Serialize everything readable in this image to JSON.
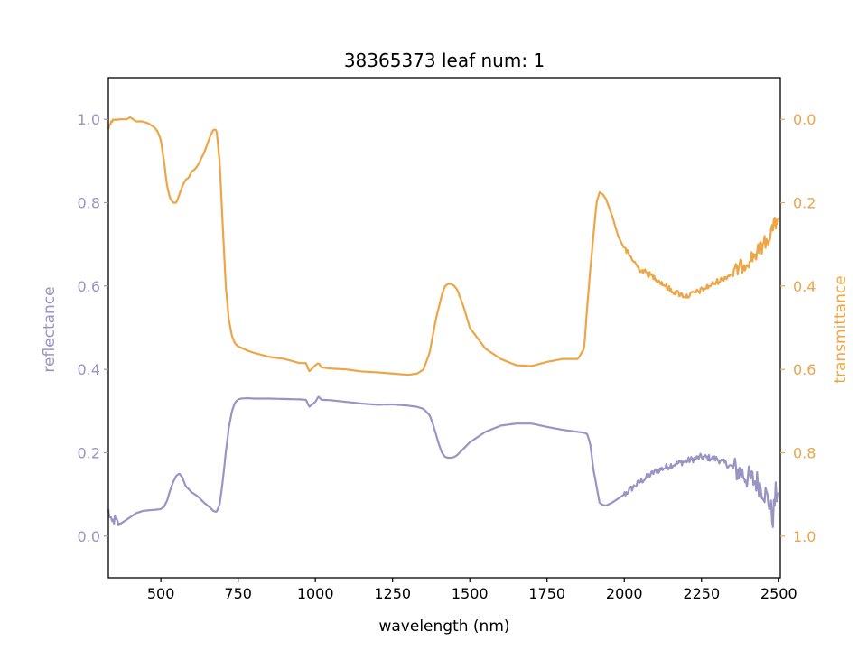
{
  "chart_data": {
    "type": "line",
    "title": "38365373 leaf num: 1",
    "xlabel": "wavelength (nm)",
    "ylabel_left": "reflectance",
    "ylabel_right": "transmittance",
    "xlim": [
      330,
      2505
    ],
    "ylim_left": [
      -0.1,
      1.1
    ],
    "ylim_right": [
      1.1,
      -0.1
    ],
    "right_axis_inverted": true,
    "x_ticks": [
      500,
      750,
      1000,
      1250,
      1500,
      1750,
      2000,
      2250,
      2500
    ],
    "x_tick_labels": [
      "500",
      "750",
      "1000",
      "1250",
      "1500",
      "1750",
      "2000",
      "2250",
      "2500"
    ],
    "y_left_ticks": [
      0.0,
      0.2,
      0.4,
      0.6,
      0.8,
      1.0
    ],
    "y_left_tick_labels": [
      "0.0",
      "0.2",
      "0.4",
      "0.6",
      "0.8",
      "1.0"
    ],
    "y_right_ticks": [
      0.0,
      0.2,
      0.4,
      0.6,
      0.8,
      1.0
    ],
    "y_right_tick_labels": [
      "0.0",
      "0.2",
      "0.4",
      "0.6",
      "0.8",
      "1.0"
    ],
    "grid": false,
    "legend": "none",
    "colors": {
      "reflectance": "#9a94c4",
      "transmittance": "#eea545",
      "frame": "#000000"
    },
    "series": [
      {
        "axis": "left",
        "color": "#9a94c4",
        "x": [
          330,
          340,
          350,
          360,
          370,
          380,
          390,
          400,
          420,
          440,
          460,
          480,
          500,
          510,
          520,
          530,
          540,
          550,
          560,
          570,
          580,
          600,
          620,
          640,
          660,
          670,
          680,
          690,
          700,
          710,
          720,
          730,
          740,
          750,
          760,
          780,
          800,
          850,
          900,
          950,
          970,
          980,
          1000,
          1010,
          1020,
          1050,
          1100,
          1150,
          1200,
          1250,
          1300,
          1330,
          1350,
          1370,
          1380,
          1390,
          1400,
          1410,
          1420,
          1430,
          1440,
          1450,
          1460,
          1480,
          1500,
          1550,
          1600,
          1650,
          1700,
          1750,
          1800,
          1850,
          1870,
          1880,
          1890,
          1900,
          1910,
          1920,
          1930,
          1940,
          1960,
          1980,
          2000,
          2050,
          2100,
          2150,
          2200,
          2250,
          2300,
          2350,
          2400,
          2430,
          2450,
          2470,
          2480,
          2490,
          2500
        ],
        "y": [
          0.06,
          0.03,
          0.04,
          0.03,
          0.03,
          0.035,
          0.04,
          0.045,
          0.055,
          0.06,
          0.062,
          0.063,
          0.065,
          0.07,
          0.085,
          0.11,
          0.13,
          0.145,
          0.15,
          0.14,
          0.12,
          0.105,
          0.095,
          0.08,
          0.068,
          0.06,
          0.058,
          0.075,
          0.13,
          0.2,
          0.26,
          0.3,
          0.32,
          0.328,
          0.33,
          0.331,
          0.33,
          0.33,
          0.329,
          0.328,
          0.327,
          0.31,
          0.322,
          0.335,
          0.327,
          0.326,
          0.322,
          0.318,
          0.315,
          0.316,
          0.313,
          0.31,
          0.305,
          0.29,
          0.27,
          0.245,
          0.22,
          0.2,
          0.19,
          0.188,
          0.188,
          0.19,
          0.195,
          0.21,
          0.225,
          0.25,
          0.265,
          0.27,
          0.27,
          0.262,
          0.255,
          0.25,
          0.248,
          0.245,
          0.22,
          0.16,
          0.12,
          0.08,
          0.075,
          0.073,
          0.08,
          0.09,
          0.1,
          0.13,
          0.155,
          0.17,
          0.18,
          0.19,
          0.185,
          0.165,
          0.14,
          0.13,
          0.11,
          0.08,
          0.04,
          0.1,
          0.1
        ],
        "noise": [
          {
            "from": 330,
            "to": 365,
            "amp": 0.012
          },
          {
            "from": 2000,
            "to": 2350,
            "amp": 0.008
          },
          {
            "from": 2350,
            "to": 2505,
            "amp": 0.03
          }
        ]
      },
      {
        "axis": "right",
        "color": "#eea545",
        "x": [
          330,
          340,
          350,
          370,
          390,
          400,
          420,
          440,
          460,
          480,
          490,
          500,
          510,
          520,
          530,
          540,
          550,
          560,
          570,
          580,
          590,
          600,
          610,
          620,
          630,
          640,
          650,
          660,
          670,
          675,
          680,
          690,
          700,
          710,
          720,
          730,
          740,
          750,
          760,
          780,
          800,
          850,
          900,
          950,
          970,
          980,
          1000,
          1010,
          1020,
          1050,
          1100,
          1150,
          1200,
          1250,
          1300,
          1330,
          1350,
          1370,
          1390,
          1410,
          1420,
          1430,
          1440,
          1450,
          1460,
          1470,
          1480,
          1500,
          1550,
          1600,
          1650,
          1700,
          1750,
          1800,
          1850,
          1870,
          1880,
          1890,
          1900,
          1910,
          1920,
          1930,
          1940,
          1960,
          1980,
          2000,
          2050,
          2100,
          2150,
          2200,
          2250,
          2300,
          2350,
          2400,
          2430,
          2450,
          2470,
          2480,
          2490,
          2500
        ],
        "y": [
          0.02,
          0.005,
          0.0,
          0.0,
          0.0,
          -0.005,
          0.005,
          0.005,
          0.01,
          0.02,
          0.03,
          0.05,
          0.1,
          0.16,
          0.19,
          0.2,
          0.2,
          0.18,
          0.16,
          0.145,
          0.14,
          0.125,
          0.12,
          0.11,
          0.095,
          0.08,
          0.06,
          0.04,
          0.025,
          0.025,
          0.025,
          0.1,
          0.25,
          0.4,
          0.48,
          0.52,
          0.538,
          0.545,
          0.548,
          0.555,
          0.56,
          0.57,
          0.575,
          0.585,
          0.585,
          0.605,
          0.59,
          0.585,
          0.595,
          0.598,
          0.6,
          0.605,
          0.607,
          0.61,
          0.613,
          0.61,
          0.6,
          0.56,
          0.48,
          0.42,
          0.4,
          0.395,
          0.395,
          0.4,
          0.41,
          0.43,
          0.45,
          0.5,
          0.55,
          0.575,
          0.59,
          0.592,
          0.582,
          0.575,
          0.575,
          0.55,
          0.45,
          0.36,
          0.28,
          0.2,
          0.175,
          0.18,
          0.19,
          0.23,
          0.28,
          0.31,
          0.36,
          0.38,
          0.41,
          0.425,
          0.41,
          0.39,
          0.37,
          0.34,
          0.32,
          0.3,
          0.28,
          0.26,
          0.25,
          0.23
        ],
        "noise": [
          {
            "from": 330,
            "to": 360,
            "amp": 0.004
          },
          {
            "from": 2000,
            "to": 2350,
            "amp": 0.007
          },
          {
            "from": 2350,
            "to": 2505,
            "amp": 0.018
          }
        ]
      }
    ]
  }
}
